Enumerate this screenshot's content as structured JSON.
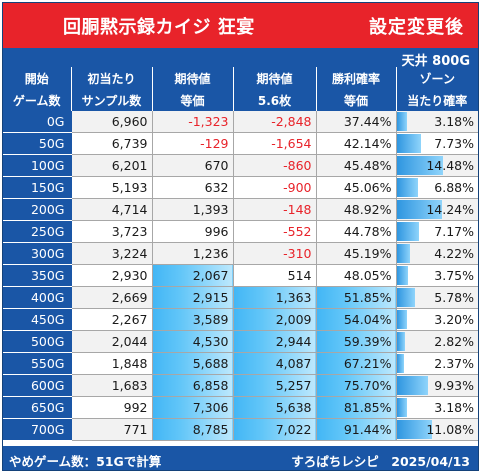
{
  "title": "回胴黙示録カイジ 狂宴",
  "subtitle": "設定変更後",
  "ceiling": "天井 800G",
  "headers": [
    [
      "開始",
      "ゲーム数"
    ],
    [
      "初当たり",
      "サンプル数"
    ],
    [
      "期待値",
      "等価"
    ],
    [
      "期待値",
      "5.6枚"
    ],
    [
      "勝利確率",
      "等価"
    ],
    [
      "ゾーン",
      "当たり確率"
    ]
  ],
  "rows": [
    {
      "start": "0G",
      "samples": "6,960",
      "ev_equal": "-1,323",
      "ev_56": "-2,848",
      "win_rate": "37.44%",
      "zone_rate": "3.18%"
    },
    {
      "start": "50G",
      "samples": "6,739",
      "ev_equal": "-129",
      "ev_56": "-1,654",
      "win_rate": "42.14%",
      "zone_rate": "7.73%"
    },
    {
      "start": "100G",
      "samples": "6,201",
      "ev_equal": "670",
      "ev_56": "-860",
      "win_rate": "45.48%",
      "zone_rate": "14.48%"
    },
    {
      "start": "150G",
      "samples": "5,193",
      "ev_equal": "632",
      "ev_56": "-900",
      "win_rate": "45.06%",
      "zone_rate": "6.88%"
    },
    {
      "start": "200G",
      "samples": "4,714",
      "ev_equal": "1,393",
      "ev_56": "-148",
      "win_rate": "48.92%",
      "zone_rate": "14.24%"
    },
    {
      "start": "250G",
      "samples": "3,723",
      "ev_equal": "996",
      "ev_56": "-552",
      "win_rate": "44.78%",
      "zone_rate": "7.17%"
    },
    {
      "start": "300G",
      "samples": "3,224",
      "ev_equal": "1,236",
      "ev_56": "-310",
      "win_rate": "45.19%",
      "zone_rate": "4.22%"
    },
    {
      "start": "350G",
      "samples": "2,930",
      "ev_equal": "2,067",
      "ev_56": "514",
      "win_rate": "48.05%",
      "zone_rate": "3.75%"
    },
    {
      "start": "400G",
      "samples": "2,669",
      "ev_equal": "2,915",
      "ev_56": "1,363",
      "win_rate": "51.85%",
      "zone_rate": "5.78%"
    },
    {
      "start": "450G",
      "samples": "2,267",
      "ev_equal": "3,589",
      "ev_56": "2,009",
      "win_rate": "54.04%",
      "zone_rate": "3.20%"
    },
    {
      "start": "500G",
      "samples": "2,044",
      "ev_equal": "4,530",
      "ev_56": "2,944",
      "win_rate": "59.39%",
      "zone_rate": "2.82%"
    },
    {
      "start": "550G",
      "samples": "1,848",
      "ev_equal": "5,688",
      "ev_56": "4,087",
      "win_rate": "67.21%",
      "zone_rate": "2.37%"
    },
    {
      "start": "600G",
      "samples": "1,683",
      "ev_equal": "6,858",
      "ev_56": "5,257",
      "win_rate": "75.70%",
      "zone_rate": "9.93%"
    },
    {
      "start": "650G",
      "samples": "992",
      "ev_equal": "7,306",
      "ev_56": "5,638",
      "win_rate": "81.85%",
      "zone_rate": "3.18%"
    },
    {
      "start": "700G",
      "samples": "771",
      "ev_equal": "8,785",
      "ev_56": "7,022",
      "win_rate": "91.44%",
      "zone_rate": "11.08%"
    }
  ],
  "footer_left": "やめゲーム数：51Gで計算",
  "footer_right": "すろぱちレシピ　2025/04/13",
  "colors": {
    "title_bg": "#e8232a",
    "header_bg": "#1a56a6",
    "negative": "#e8232a",
    "highlight": "#42b6f5"
  }
}
